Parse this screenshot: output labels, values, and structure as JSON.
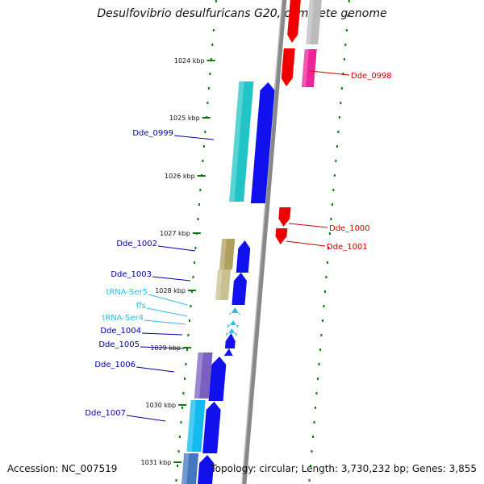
{
  "title": "Desulfovibrio desulfuricans G20, complete genome",
  "accession": "Accession: NC_007519",
  "topology": "Topology: circular; Length: 3,730,232 bp; Genes: 3,855",
  "colors": {
    "background": "#ffffff",
    "backbone": "#888888",
    "tick_inner": "#117711",
    "tick_outer": "#117711",
    "label_left": "#0000aa",
    "label_right": "#cc0000",
    "label_rna": "#33bbdd"
  },
  "scale_ticks": [
    "1024 kbp",
    "1025 kbp",
    "1026 kbp",
    "1027 kbp",
    "1028 kbp",
    "1029 kbp",
    "1030 kbp",
    "1031 kbp"
  ],
  "left_labels": [
    {
      "text": "Dde_0999",
      "color": "#0000aa"
    },
    {
      "text": "Dde_1002",
      "color": "#0000aa"
    },
    {
      "text": "Dde_1003",
      "color": "#0000aa"
    },
    {
      "text": "tRNA-Ser5",
      "color": "#33bbdd"
    },
    {
      "text": "ffs",
      "color": "#33bbdd"
    },
    {
      "text": "tRNA-Ser4",
      "color": "#33bbdd"
    },
    {
      "text": "Dde_1004",
      "color": "#0000aa"
    },
    {
      "text": "Dde_1005",
      "color": "#0000aa"
    },
    {
      "text": "Dde_1006",
      "color": "#0000aa"
    },
    {
      "text": "Dde_1007",
      "color": "#0000aa"
    }
  ],
  "right_labels": [
    {
      "text": "Dde_0998",
      "color": "#cc0000"
    },
    {
      "text": "Dde_1000",
      "color": "#cc0000"
    },
    {
      "text": "Dde_1001",
      "color": "#cc0000"
    }
  ]
}
